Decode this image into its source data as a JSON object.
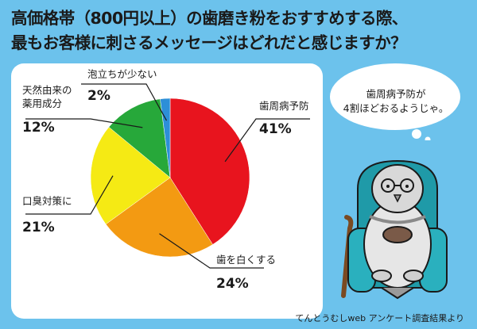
{
  "title": {
    "line1": "高価格帯（800円以上）の歯磨き粉をおすすめする際、",
    "line2": "最もお客様に刺さるメッセージはどれだと感じますか？"
  },
  "speech_bubble": {
    "line1": "歯周病予防が",
    "line2": "4割ほどおるようじゃ。"
  },
  "source": "てんとうむしweb アンケート調査結果より",
  "chart_data": {
    "type": "pie",
    "title": "",
    "slices": [
      {
        "label": "歯周病予防",
        "value": 41,
        "value_label": "41%",
        "color": "#e8141e"
      },
      {
        "label": "歯を白くする",
        "value": 24,
        "value_label": "24%",
        "color": "#f39a12"
      },
      {
        "label": "口臭対策に",
        "value": 21,
        "value_label": "21%",
        "color": "#f5ea14"
      },
      {
        "label": "天然由来の\n薬用成分",
        "value": 12,
        "value_label": "12%",
        "color": "#27a83a"
      },
      {
        "label": "泡立ちが少ない",
        "value": 2,
        "value_label": "2%",
        "color": "#2d8fd8"
      }
    ]
  },
  "colors": {
    "background": "#6cc2ec",
    "panel": "#ffffff",
    "text": "#1a1a1a"
  }
}
